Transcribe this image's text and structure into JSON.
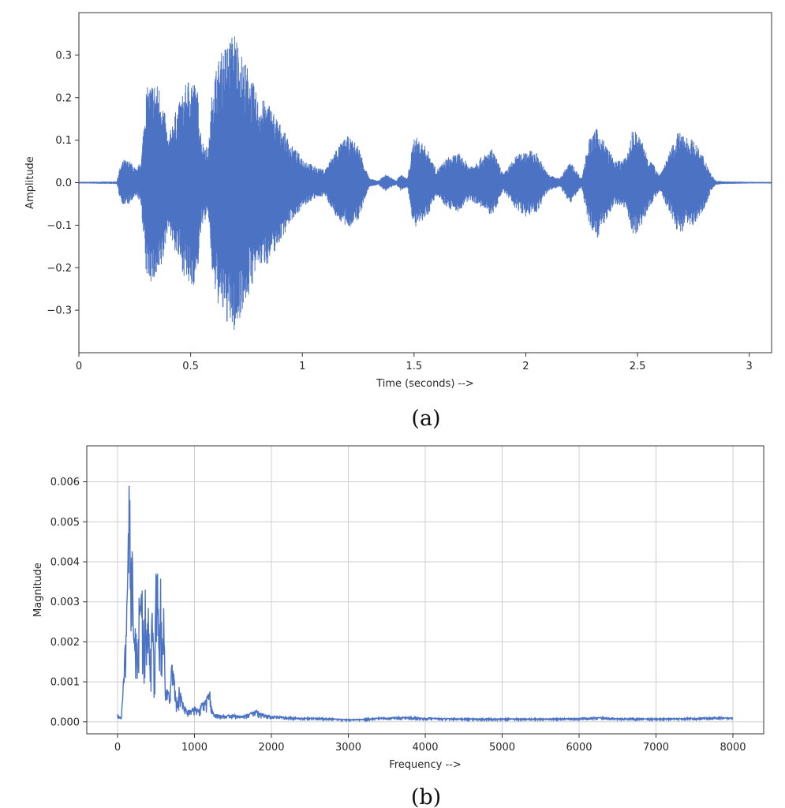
{
  "colors": {
    "series": "#4c72c4",
    "grid": "#cfcfcf",
    "axis": "#333333"
  },
  "captions": {
    "a": "(a)",
    "b": "(b)"
  },
  "chart_data": [
    {
      "type": "line",
      "xlabel": "Time (seconds) -->",
      "ylabel": "Amplitude",
      "xlim": [
        0,
        3.1
      ],
      "ylim": [
        -0.4,
        0.4
      ],
      "xticks": [
        0,
        0.5,
        1,
        1.5,
        2,
        2.5,
        3
      ],
      "yticks": [
        -0.3,
        -0.2,
        -0.1,
        0.0,
        0.1,
        0.2,
        0.3
      ],
      "xtick_labels": [
        "0",
        "0.5",
        "1",
        "1.5",
        "2",
        "2.5",
        "3"
      ],
      "ytick_labels": [
        "−0.3",
        "−0.2",
        "−0.1",
        "0.0",
        "0.1",
        "0.2",
        "0.3"
      ],
      "grid": false,
      "envelope": {
        "x": [
          0,
          0.17,
          0.18,
          0.2,
          0.23,
          0.26,
          0.28,
          0.3,
          0.33,
          0.36,
          0.38,
          0.4,
          0.42,
          0.45,
          0.47,
          0.5,
          0.53,
          0.55,
          0.58,
          0.6,
          0.63,
          0.66,
          0.7,
          0.73,
          0.76,
          0.8,
          0.85,
          0.9,
          0.95,
          1.0,
          1.05,
          1.1,
          1.15,
          1.2,
          1.25,
          1.28,
          1.3,
          1.34,
          1.37,
          1.4,
          1.42,
          1.44,
          1.47,
          1.5,
          1.53,
          1.56,
          1.6,
          1.65,
          1.7,
          1.75,
          1.8,
          1.85,
          1.9,
          1.95,
          2.0,
          2.05,
          2.1,
          2.15,
          2.2,
          2.25,
          2.28,
          2.32,
          2.35,
          2.4,
          2.45,
          2.48,
          2.52,
          2.55,
          2.6,
          2.65,
          2.68,
          2.72,
          2.75,
          2.8,
          2.83,
          2.85,
          2.9,
          3.0,
          3.1
        ],
        "top": [
          0.002,
          0.003,
          0.03,
          0.055,
          0.05,
          0.03,
          0.06,
          0.22,
          0.24,
          0.23,
          0.18,
          0.1,
          0.15,
          0.19,
          0.22,
          0.26,
          0.22,
          0.1,
          0.08,
          0.25,
          0.3,
          0.33,
          0.36,
          0.3,
          0.27,
          0.2,
          0.19,
          0.14,
          0.09,
          0.06,
          0.04,
          0.03,
          0.08,
          0.11,
          0.09,
          0.04,
          0.01,
          0.005,
          0.02,
          0.012,
          0.005,
          0.02,
          0.01,
          0.11,
          0.1,
          0.08,
          0.03,
          0.06,
          0.07,
          0.04,
          0.06,
          0.08,
          0.02,
          0.06,
          0.08,
          0.07,
          0.02,
          0.01,
          0.05,
          0.01,
          0.1,
          0.13,
          0.1,
          0.05,
          0.06,
          0.13,
          0.1,
          0.06,
          0.02,
          0.08,
          0.12,
          0.11,
          0.1,
          0.06,
          0.02,
          0.005,
          0.003,
          0.002,
          0.002
        ],
        "bottom": [
          -0.002,
          -0.003,
          -0.03,
          -0.055,
          -0.05,
          -0.03,
          -0.06,
          -0.22,
          -0.24,
          -0.23,
          -0.18,
          -0.1,
          -0.15,
          -0.19,
          -0.22,
          -0.26,
          -0.22,
          -0.1,
          -0.08,
          -0.25,
          -0.3,
          -0.33,
          -0.36,
          -0.3,
          -0.27,
          -0.2,
          -0.19,
          -0.14,
          -0.09,
          -0.06,
          -0.04,
          -0.03,
          -0.08,
          -0.11,
          -0.09,
          -0.04,
          -0.01,
          -0.005,
          -0.02,
          -0.012,
          -0.005,
          -0.02,
          -0.01,
          -0.11,
          -0.1,
          -0.08,
          -0.03,
          -0.06,
          -0.07,
          -0.04,
          -0.06,
          -0.08,
          -0.02,
          -0.06,
          -0.08,
          -0.07,
          -0.02,
          -0.01,
          -0.05,
          -0.01,
          -0.1,
          -0.13,
          -0.1,
          -0.05,
          -0.06,
          -0.13,
          -0.1,
          -0.06,
          -0.02,
          -0.08,
          -0.12,
          -0.11,
          -0.1,
          -0.06,
          -0.02,
          -0.005,
          -0.003,
          -0.002,
          -0.002
        ]
      }
    },
    {
      "type": "line",
      "xlabel": "Frequency -->",
      "ylabel": "Magnitude",
      "xlim": [
        -400,
        8400
      ],
      "ylim": [
        -0.0003,
        0.0069
      ],
      "xticks": [
        0,
        1000,
        2000,
        3000,
        4000,
        5000,
        6000,
        7000,
        8000
      ],
      "yticks": [
        0.0,
        0.001,
        0.002,
        0.003,
        0.004,
        0.005,
        0.006
      ],
      "xtick_labels": [
        "0",
        "1000",
        "2000",
        "3000",
        "4000",
        "5000",
        "6000",
        "7000",
        "8000"
      ],
      "ytick_labels": [
        "0.000",
        "0.001",
        "0.002",
        "0.003",
        "0.004",
        "0.005",
        "0.006"
      ],
      "grid": true,
      "spectrum": {
        "x": [
          0,
          50,
          100,
          130,
          150,
          170,
          190,
          210,
          240,
          260,
          280,
          300,
          320,
          340,
          360,
          380,
          400,
          420,
          450,
          480,
          500,
          520,
          540,
          560,
          580,
          600,
          620,
          650,
          680,
          700,
          720,
          750,
          780,
          800,
          850,
          900,
          950,
          1000,
          1050,
          1100,
          1150,
          1200,
          1220,
          1250,
          1300,
          1400,
          1500,
          1600,
          1700,
          1800,
          1900,
          2000,
          2200,
          2400,
          2600,
          2800,
          3000,
          3200,
          3400,
          3600,
          3800,
          4000,
          4500,
          5000,
          5500,
          6000,
          6200,
          6500,
          7000,
          7500,
          7800,
          8000
        ],
        "y": [
          0.0002,
          0.0001,
          0.002,
          0.0035,
          0.0066,
          0.0045,
          0.0046,
          0.0022,
          0.0025,
          0.0016,
          0.0032,
          0.0028,
          0.0038,
          0.0018,
          0.0034,
          0.002,
          0.0032,
          0.0015,
          0.0028,
          0.0012,
          0.0038,
          0.004,
          0.002,
          0.0036,
          0.0018,
          0.003,
          0.0008,
          0.0009,
          0.0006,
          0.0014,
          0.0015,
          0.0008,
          0.0004,
          0.0009,
          0.0005,
          0.0003,
          0.0003,
          0.0004,
          0.0003,
          0.0005,
          0.0006,
          0.0008,
          0.0004,
          0.0002,
          0.0002,
          0.00015,
          0.0002,
          0.00015,
          0.0002,
          0.0003,
          0.0002,
          0.00015,
          0.00012,
          0.0001,
          0.0001,
          8e-05,
          6e-05,
          7e-05,
          0.0001,
          0.00012,
          0.00012,
          0.0001,
          8e-05,
          8e-05,
          8e-05,
          9e-05,
          0.00012,
          9e-05,
          8e-05,
          0.0001,
          0.00012,
          0.0001
        ]
      }
    }
  ]
}
